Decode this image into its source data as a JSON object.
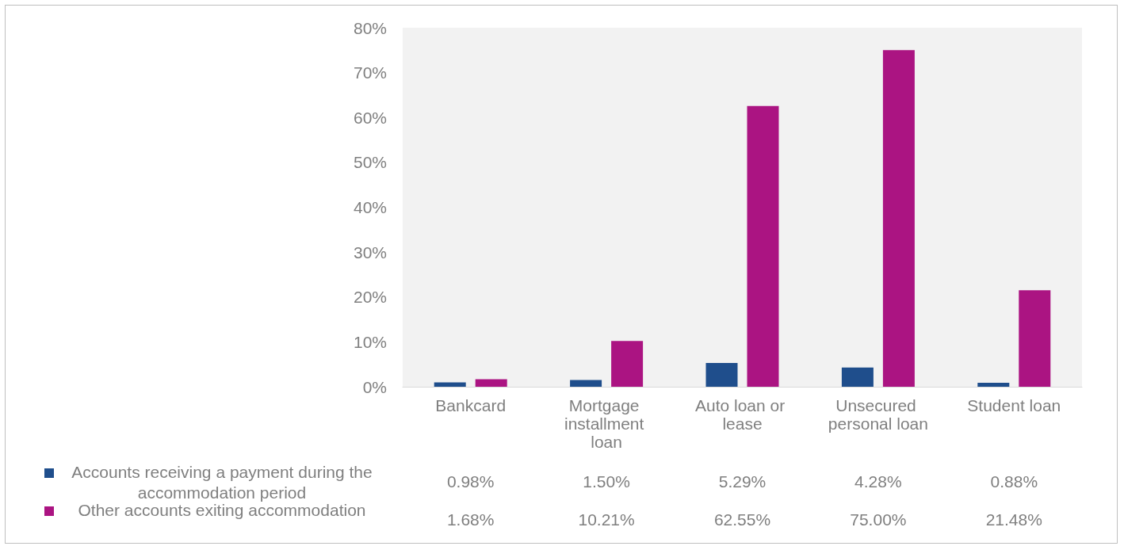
{
  "chart_data": {
    "type": "bar",
    "categories": [
      "Bankcard",
      "Mortgage installment loan",
      "Auto loan or lease",
      "Unsecured personal loan",
      "Student loan"
    ],
    "series": [
      {
        "name": "Accounts receiving a payment during the accommodation period",
        "color": "#1f4e8c",
        "values": [
          0.98,
          1.5,
          5.29,
          4.28,
          0.88
        ],
        "value_labels": [
          "0.98%",
          "1.50%",
          "5.29%",
          "4.28%",
          "0.88%"
        ]
      },
      {
        "name": "Other accounts exiting accommodation",
        "color": "#ab1482",
        "values": [
          1.68,
          10.21,
          62.55,
          75.0,
          21.48
        ],
        "value_labels": [
          "1.68%",
          "10.21%",
          "62.55%",
          "75.00%",
          "21.48%"
        ]
      }
    ],
    "ylim": [
      0,
      80
    ],
    "yticks": [
      {
        "value": 0,
        "label": "0%"
      },
      {
        "value": 10,
        "label": "10%"
      },
      {
        "value": 20,
        "label": "20%"
      },
      {
        "value": 30,
        "label": "30%"
      },
      {
        "value": 40,
        "label": "40%"
      },
      {
        "value": 50,
        "label": "50%"
      },
      {
        "value": 60,
        "label": "60%"
      },
      {
        "value": 70,
        "label": "70%"
      },
      {
        "value": 80,
        "label": "80%"
      }
    ],
    "grid": false,
    "legend": "bottom"
  }
}
